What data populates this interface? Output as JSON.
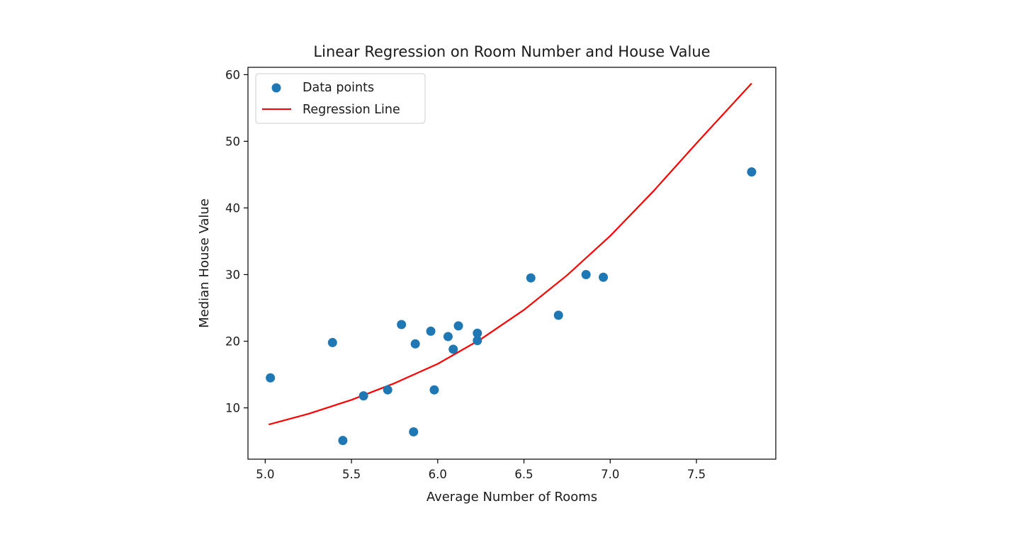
{
  "chart_data": {
    "type": "scatter",
    "title": "Linear Regression on Room Number and House Value",
    "xlabel": "Average Number of Rooms",
    "ylabel": "Median House Value",
    "xlim": [
      4.9,
      7.96
    ],
    "ylim": [
      2.3,
      61.1
    ],
    "x_ticks": [
      5.0,
      5.5,
      6.0,
      6.5,
      7.0,
      7.5
    ],
    "x_tick_labels": [
      "5.0",
      "5.5",
      "6.0",
      "6.5",
      "7.0",
      "7.5"
    ],
    "y_ticks": [
      10,
      20,
      30,
      40,
      50,
      60
    ],
    "y_tick_labels": [
      "10",
      "20",
      "30",
      "40",
      "50",
      "60"
    ],
    "grid": false,
    "legend_position": "top-left",
    "series": [
      {
        "name": "Data points",
        "kind": "scatter",
        "color": "#1f77b4",
        "points": [
          {
            "x": 5.03,
            "y": 14.5
          },
          {
            "x": 5.39,
            "y": 19.8
          },
          {
            "x": 5.45,
            "y": 5.1
          },
          {
            "x": 5.57,
            "y": 11.8
          },
          {
            "x": 5.71,
            "y": 12.7
          },
          {
            "x": 5.79,
            "y": 22.5
          },
          {
            "x": 5.86,
            "y": 6.4
          },
          {
            "x": 5.87,
            "y": 19.6
          },
          {
            "x": 5.96,
            "y": 21.5
          },
          {
            "x": 5.98,
            "y": 12.7
          },
          {
            "x": 6.06,
            "y": 20.7
          },
          {
            "x": 6.09,
            "y": 18.8
          },
          {
            "x": 6.12,
            "y": 22.3
          },
          {
            "x": 6.23,
            "y": 20.1
          },
          {
            "x": 6.23,
            "y": 21.2
          },
          {
            "x": 6.54,
            "y": 29.5
          },
          {
            "x": 6.7,
            "y": 23.9
          },
          {
            "x": 6.86,
            "y": 30.0
          },
          {
            "x": 6.96,
            "y": 29.6
          },
          {
            "x": 7.82,
            "y": 45.4
          }
        ]
      },
      {
        "name": "Regression Line",
        "kind": "line",
        "color": "#ff0000",
        "points": [
          {
            "x": 5.02,
            "y": 7.5
          },
          {
            "x": 5.25,
            "y": 9.1
          },
          {
            "x": 5.5,
            "y": 11.2
          },
          {
            "x": 5.75,
            "y": 13.7
          },
          {
            "x": 6.0,
            "y": 16.6
          },
          {
            "x": 6.25,
            "y": 20.3
          },
          {
            "x": 6.5,
            "y": 24.7
          },
          {
            "x": 6.75,
            "y": 29.9
          },
          {
            "x": 7.0,
            "y": 35.8
          },
          {
            "x": 7.25,
            "y": 42.5
          },
          {
            "x": 7.5,
            "y": 49.7
          },
          {
            "x": 7.82,
            "y": 58.7
          }
        ]
      }
    ]
  }
}
